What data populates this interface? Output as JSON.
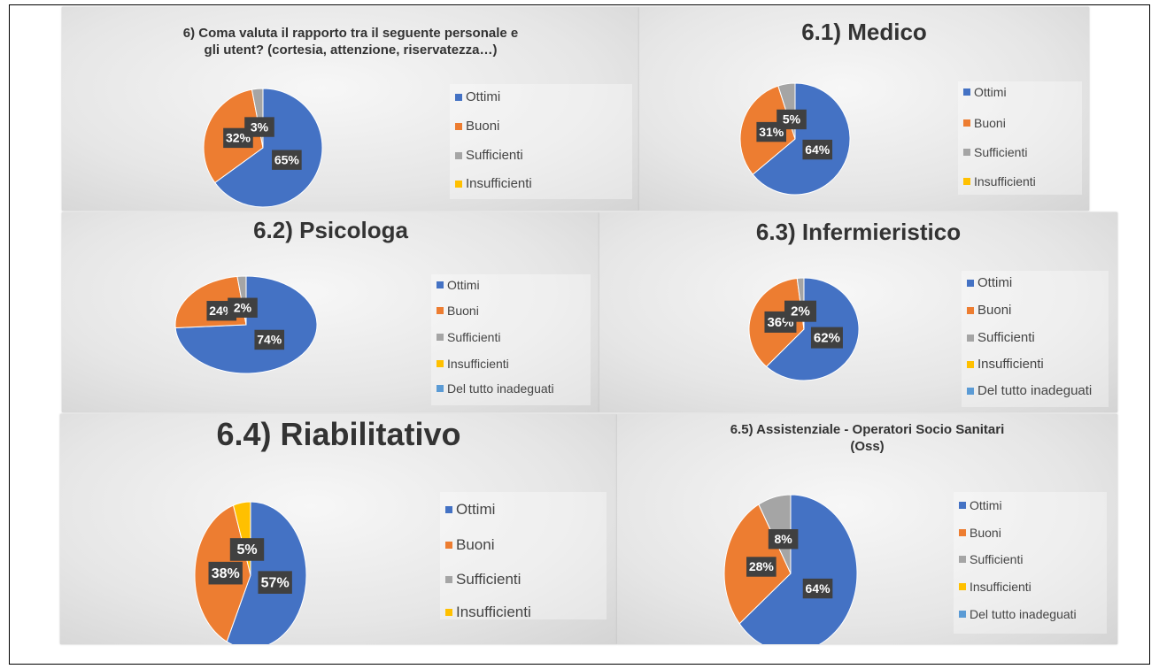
{
  "chart_data": [
    {
      "type": "pie",
      "title": "6) Coma valuta il rapporto tra il seguente personale e gli utent? (cortesia, attenzione, riservatezza…)",
      "categories": [
        "Ottimi",
        "Buoni",
        "Sufficienti",
        "Insufficienti"
      ],
      "values": [
        65,
        32,
        3,
        0
      ],
      "value_labels": [
        "65%",
        "32%",
        "3%",
        null
      ],
      "colors": [
        "#4472c4",
        "#ed7d31",
        "#a5a5a5",
        "#ffc000"
      ]
    },
    {
      "type": "pie",
      "title": "6.1) Medico",
      "categories": [
        "Ottimi",
        "Buoni",
        "Sufficienti",
        "Insufficienti"
      ],
      "values": [
        64,
        31,
        5,
        0
      ],
      "value_labels": [
        "64%",
        "31%",
        "5%",
        null
      ],
      "colors": [
        "#4472c4",
        "#ed7d31",
        "#a5a5a5",
        "#ffc000"
      ]
    },
    {
      "type": "pie",
      "title": "6.2) Psicologa",
      "categories": [
        "Ottimi",
        "Buoni",
        "Sufficienti",
        "Insufficienti",
        "Del tutto inadeguati"
      ],
      "values": [
        74,
        24,
        2,
        0,
        0
      ],
      "value_labels": [
        "74%",
        "24%",
        "2%",
        null,
        null
      ],
      "colors": [
        "#4472c4",
        "#ed7d31",
        "#a5a5a5",
        "#ffc000",
        "#5b9bd5"
      ]
    },
    {
      "type": "pie",
      "title": "6.3) Infermieristico",
      "categories": [
        "Ottimi",
        "Buoni",
        "Sufficienti",
        "Insufficienti",
        "Del tutto inadeguati"
      ],
      "values": [
        62,
        36,
        2,
        0,
        0
      ],
      "value_labels": [
        "62%",
        "36%",
        "2%",
        null,
        null
      ],
      "colors": [
        "#4472c4",
        "#ed7d31",
        "#a5a5a5",
        "#ffc000",
        "#5b9bd5"
      ]
    },
    {
      "type": "pie",
      "title": "6.4) Riabilitativo",
      "categories": [
        "Ottimi",
        "Buoni",
        "Sufficienti",
        "Insufficienti"
      ],
      "values": [
        57,
        38,
        0,
        5
      ],
      "value_labels": [
        "57%",
        "38%",
        null,
        "5%"
      ],
      "colors": [
        "#4472c4",
        "#ed7d31",
        "#a5a5a5",
        "#ffc000"
      ]
    },
    {
      "type": "pie",
      "title": "6.5) Assistenziale - Operatori Socio Sanitari (Oss)",
      "categories": [
        "Ottimi",
        "Buoni",
        "Sufficienti",
        "Insufficienti",
        "Del tutto inadeguati"
      ],
      "values": [
        64,
        28,
        8,
        0,
        0
      ],
      "value_labels": [
        "64%",
        "28%",
        "8%",
        null,
        null
      ],
      "colors": [
        "#4472c4",
        "#ed7d31",
        "#a5a5a5",
        "#ffc000",
        "#5b9bd5"
      ]
    }
  ]
}
